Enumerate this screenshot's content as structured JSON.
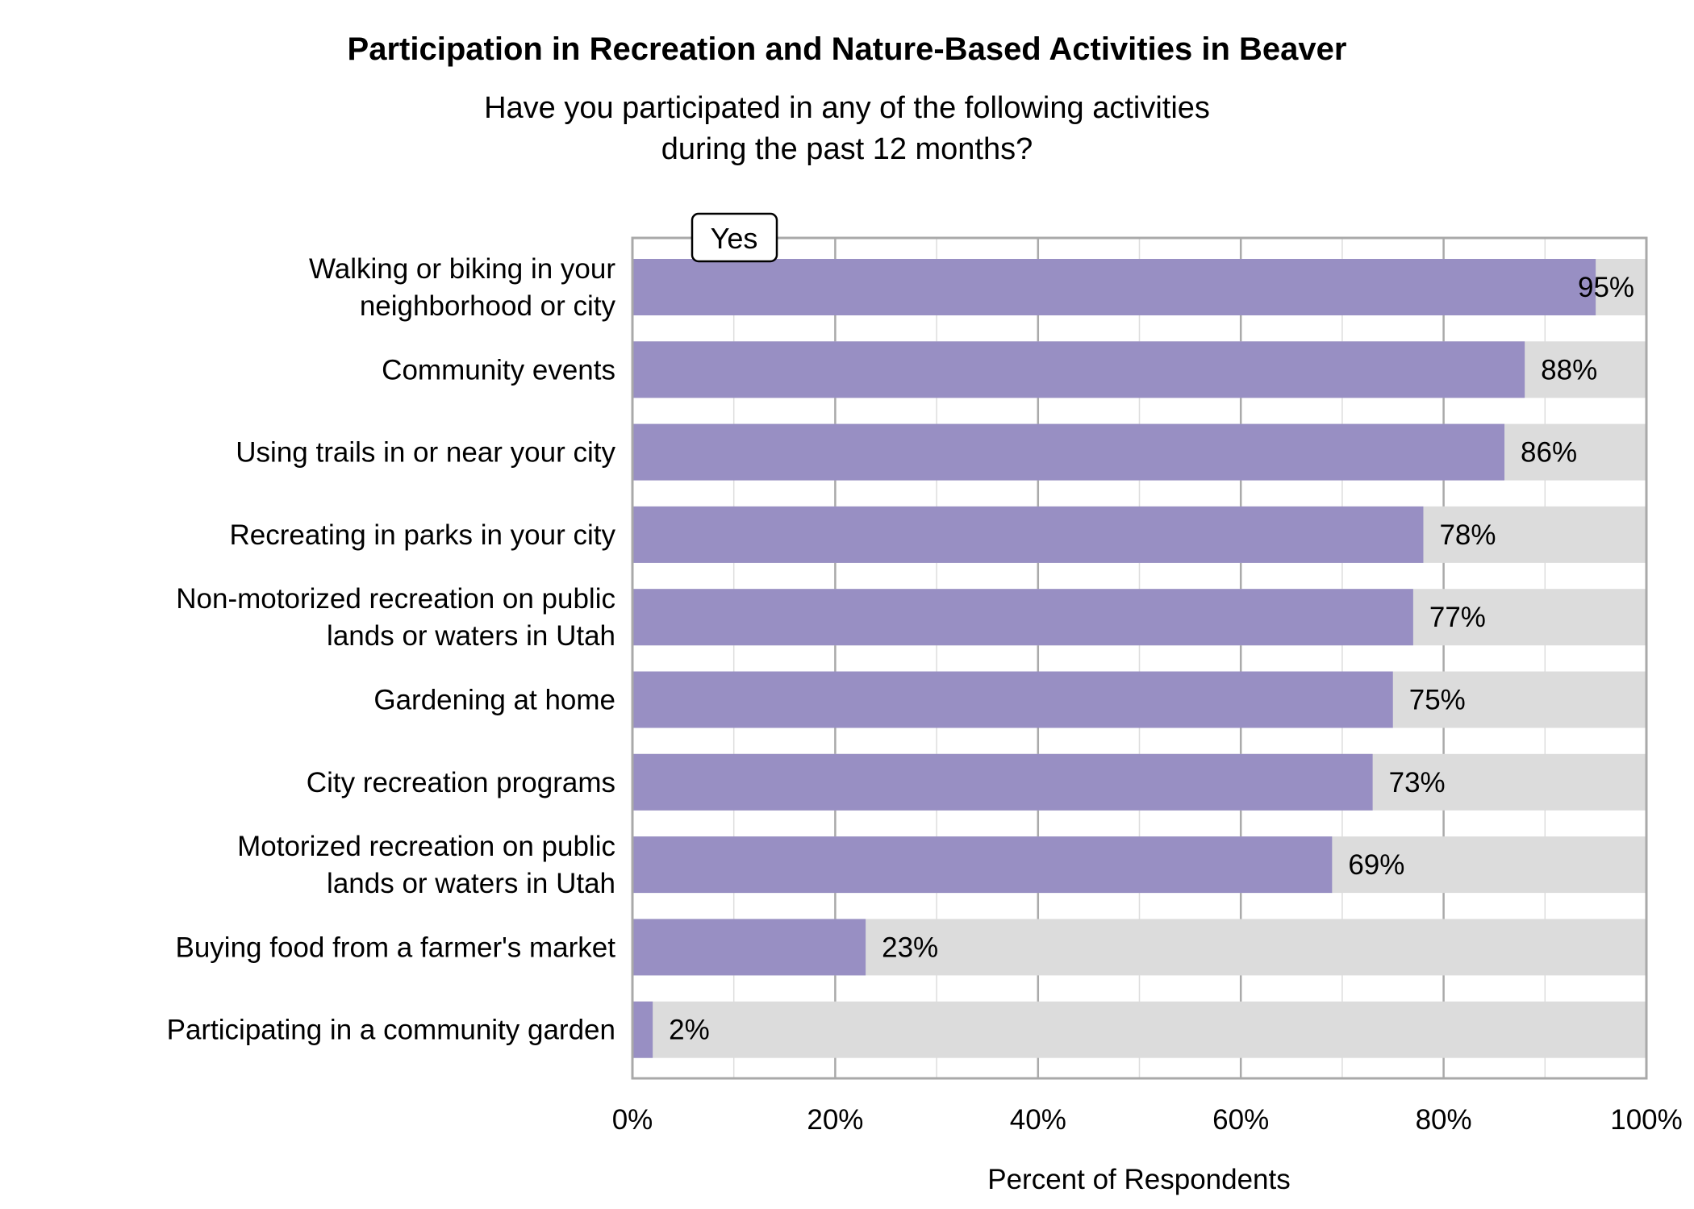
{
  "chart_data": {
    "type": "bar",
    "orientation": "horizontal",
    "stacked_background": true,
    "title": "Participation in Recreation and Nature-Based Activities in Beaver",
    "subtitle": [
      "Have you participated in any of the following activities",
      "during the past 12 months?"
    ],
    "xlabel": "Percent of Respondents",
    "ylabel": "",
    "xlim": [
      0,
      100
    ],
    "x_ticks": [
      "0%",
      "20%",
      "40%",
      "60%",
      "80%",
      "100%"
    ],
    "grid": true,
    "legend": {
      "label": "Yes",
      "placement": "top-left"
    },
    "categories": [
      [
        "Walking or biking in your",
        "neighborhood or city"
      ],
      [
        "Community events"
      ],
      [
        "Using trails in or near your city"
      ],
      [
        "Recreating in parks in your city"
      ],
      [
        "Non-motorized recreation on public",
        "lands or waters in Utah"
      ],
      [
        "Gardening at home"
      ],
      [
        "City recreation programs"
      ],
      [
        "Motorized recreation on public",
        "lands or waters in Utah"
      ],
      [
        "Buying food from a farmer's market"
      ],
      [
        "Participating in a community garden"
      ]
    ],
    "series": [
      {
        "name": "Yes",
        "values": [
          95,
          88,
          86,
          78,
          77,
          75,
          73,
          69,
          23,
          2
        ]
      }
    ],
    "data_labels": [
      "95%",
      "88%",
      "86%",
      "78%",
      "77%",
      "75%",
      "73%",
      "69%",
      "23%",
      "2%"
    ],
    "colors": {
      "yes": "#988fc3",
      "remainder": "#dcdcdc",
      "frame": "#a9a9a9",
      "grid": "#d9d9d9"
    }
  }
}
